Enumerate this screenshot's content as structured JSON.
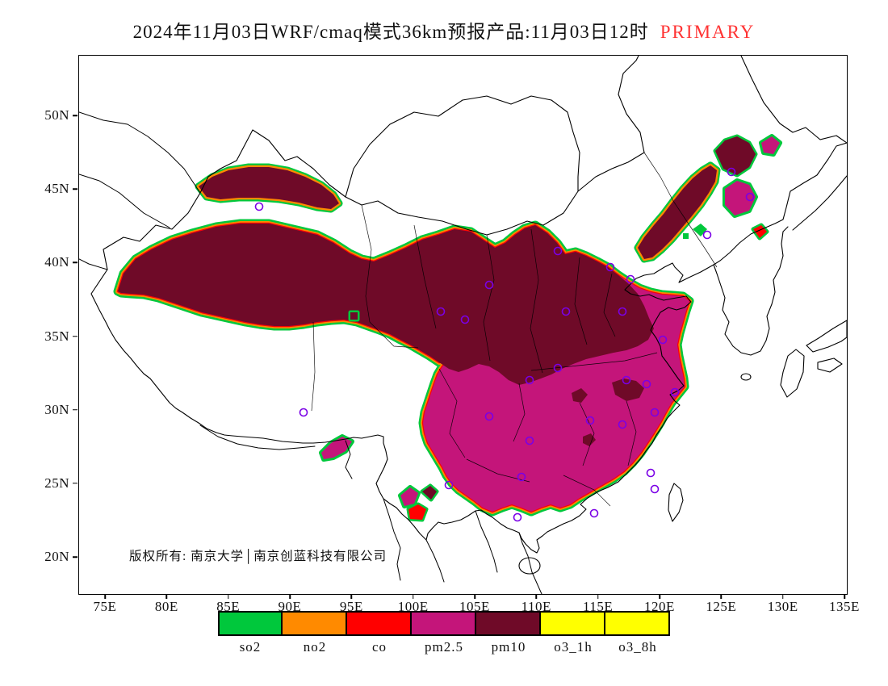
{
  "title": {
    "main": "2024年11月03日WRF/cmaq模式36km预报产品:11月03日12时",
    "tag": "PRIMARY"
  },
  "map": {
    "copyright": "版权所有: 南京大学│南京创蓝科技有限公司",
    "colors": {
      "so2": "#00C83C",
      "no2": "#FF8A00",
      "co": "#FF0000",
      "pm25": "#C4157A",
      "pm10": "#6F0A28",
      "o3": "#FFFF00",
      "marker": "#7A00E6",
      "accent": "#FF3333"
    },
    "regions": [
      {
        "pollutant": "pm10",
        "area": "Northwest China, North China Plain and a Northeast band (dark maroon)"
      },
      {
        "pollutant": "pm2.5",
        "area": "Central, East and South China (magenta)"
      },
      {
        "pollutant": "so2",
        "area": "Green fringe along polluted region boundaries"
      }
    ]
  },
  "axes": {
    "x": [
      "75E",
      "80E",
      "85E",
      "90E",
      "95E",
      "100E",
      "105E",
      "110E",
      "115E",
      "120E",
      "125E",
      "130E",
      "135E"
    ],
    "y": [
      "50N",
      "45N",
      "40N",
      "35N",
      "30N",
      "25N",
      "20N"
    ]
  },
  "legend": {
    "items": [
      {
        "label": "so2",
        "color": "#00C83C"
      },
      {
        "label": "no2",
        "color": "#FF8A00"
      },
      {
        "label": "co",
        "color": "#FF0000"
      },
      {
        "label": "pm2.5",
        "color": "#C4157A"
      },
      {
        "label": "pm10",
        "color": "#6F0A28"
      },
      {
        "label": "o3_1h",
        "color": "#FFFF00"
      },
      {
        "label": "o3_8h",
        "color": "#FFFF00"
      }
    ]
  }
}
